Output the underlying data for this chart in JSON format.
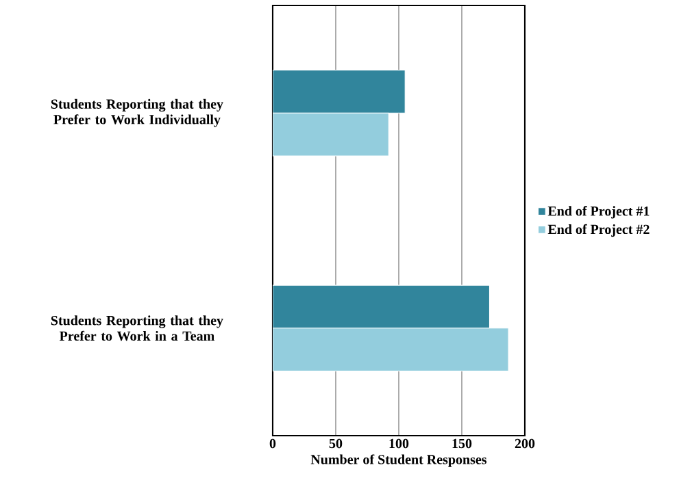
{
  "chart_data": {
    "type": "bar",
    "orientation": "horizontal",
    "categories": [
      "Students Reporting that they Prefer to Work Individually",
      "Students Reporting that they Prefer to Work in a Team"
    ],
    "series": [
      {
        "name": "End of Project #1",
        "color": "#31859c",
        "values": [
          105,
          172
        ]
      },
      {
        "name": "End of Project #2",
        "color": "#93cddd",
        "values": [
          92,
          187
        ]
      }
    ],
    "xlabel": "Number of Student Responses",
    "xlim": [
      0,
      200
    ],
    "xticks": [
      0,
      50,
      100,
      150,
      200
    ],
    "grid": "x",
    "legend": "right"
  }
}
